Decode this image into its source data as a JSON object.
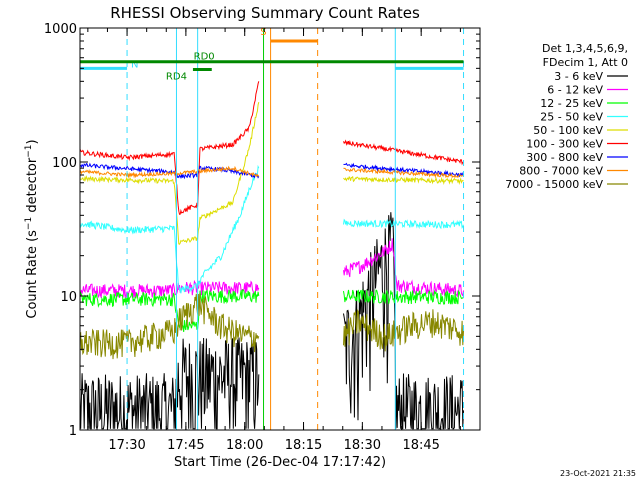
{
  "chart_data": {
    "type": "line",
    "title": "RHESSI Observing Summary Count Rates",
    "xlabel": "Start Time (26-Dec-04 17:17:42)",
    "ylabel_main": "Count Rate (s",
    "ylabel_sup1": "−1",
    "ylabel_mid": " detector",
    "ylabel_sup2": "−1",
    "ylabel_end": ")",
    "yscale": "log",
    "ylim": [
      1,
      1000
    ],
    "xlim_minutes": [
      17.3,
      19.0
    ],
    "x_ticks": [
      {
        "t": 17.5,
        "label": "17:30"
      },
      {
        "t": 17.75,
        "label": "17:45"
      },
      {
        "t": 18.0,
        "label": "18:00"
      },
      {
        "t": 18.25,
        "label": "18:15"
      },
      {
        "t": 18.5,
        "label": "18:30"
      },
      {
        "t": 18.75,
        "label": "18:45"
      }
    ],
    "y_ticks": [
      {
        "v": 1,
        "label": "1"
      },
      {
        "v": 10,
        "label": "10"
      },
      {
        "v": 100,
        "label": "100"
      },
      {
        "v": 1000,
        "label": "1000"
      }
    ],
    "legend_header": [
      "Det 1,3,4,5,6,9,",
      "FDecim 1, Att 0"
    ],
    "legend_position": "right",
    "timestamp": "23-Oct-2021 21:35",
    "flags": [
      {
        "label": "N",
        "color": "#33ddff",
        "segments": [
          [
            17.3,
            17.5
          ],
          [
            18.64,
            18.93
          ]
        ],
        "level": 500
      },
      {
        "label": "RD0",
        "color": "#008800",
        "segments": [
          [
            17.3,
            18.93
          ]
        ],
        "level": 560
      },
      {
        "label": "RD4",
        "color": "#008800",
        "segments": [
          [
            17.78,
            17.86
          ]
        ],
        "level": 490
      },
      {
        "label": "S",
        "color": "#ff8800",
        "segments": [
          [
            18.11,
            18.31
          ]
        ],
        "level": 800
      }
    ],
    "vertical_lines": [
      {
        "t": 17.5,
        "color": "#33ddff",
        "dashed": true
      },
      {
        "t": 17.71,
        "color": "#33ddff",
        "dashed": false
      },
      {
        "t": 17.8,
        "color": "#33ddff",
        "dashed": false
      },
      {
        "t": 18.08,
        "color": "#00cc00",
        "dashed": false
      },
      {
        "t": 18.11,
        "color": "#ff8800",
        "dashed": false
      },
      {
        "t": 18.31,
        "color": "#ff8800",
        "dashed": true
      },
      {
        "t": 18.64,
        "color": "#33ddff",
        "dashed": false
      },
      {
        "t": 18.93,
        "color": "#33ddff",
        "dashed": true
      }
    ],
    "series": [
      {
        "name": "3 - 6 keV",
        "color": "#000000",
        "noise": 0.9,
        "segments": [
          [
            [
              17.3,
              1.4
            ],
            [
              17.7,
              1.4
            ],
            [
              17.72,
              2.6
            ],
            [
              18.06,
              2.6
            ]
          ],
          [
            [
              18.42,
              4.5
            ],
            [
              18.46,
              5.5
            ],
            [
              18.5,
              8
            ],
            [
              18.55,
              13
            ],
            [
              18.6,
              20
            ],
            [
              18.63,
              24
            ],
            [
              18.645,
              1.4
            ],
            [
              18.93,
              1.4
            ]
          ]
        ]
      },
      {
        "name": "6 - 12 keV",
        "color": "#ff00ff",
        "noise": 0.12,
        "segments": [
          [
            [
              17.3,
              11
            ],
            [
              17.7,
              11
            ],
            [
              17.72,
              11.5
            ],
            [
              18.06,
              11.5
            ]
          ],
          [
            [
              18.42,
              15
            ],
            [
              18.5,
              17
            ],
            [
              18.6,
              22
            ],
            [
              18.63,
              25
            ],
            [
              18.645,
              12
            ],
            [
              18.93,
              11
            ]
          ]
        ]
      },
      {
        "name": "12 - 25 keV",
        "color": "#00ff00",
        "noise": 0.12,
        "segments": [
          [
            [
              17.3,
              9.5
            ],
            [
              17.7,
              9.5
            ],
            [
              17.72,
              6
            ],
            [
              17.8,
              6
            ],
            [
              17.81,
              10
            ],
            [
              18.06,
              10
            ]
          ],
          [
            [
              18.42,
              10
            ],
            [
              18.93,
              9.8
            ]
          ]
        ]
      },
      {
        "name": "25 - 50 keV",
        "color": "#33ffff",
        "noise": 0.06,
        "segments": [
          [
            [
              17.3,
              35
            ],
            [
              17.5,
              31
            ],
            [
              17.7,
              32
            ],
            [
              17.72,
              11
            ],
            [
              17.8,
              12
            ],
            [
              17.82,
              14
            ],
            [
              17.9,
              20
            ],
            [
              17.98,
              40
            ],
            [
              18.03,
              70
            ],
            [
              18.06,
              90
            ]
          ],
          [
            [
              18.42,
              35
            ],
            [
              18.93,
              34
            ]
          ]
        ]
      },
      {
        "name": "50 - 100 keV",
        "color": "#dddd00",
        "noise": 0.04,
        "segments": [
          [
            [
              17.3,
              75
            ],
            [
              17.7,
              72
            ],
            [
              17.72,
              25
            ],
            [
              17.8,
              27
            ],
            [
              17.81,
              38
            ],
            [
              17.95,
              50
            ],
            [
              18.02,
              130
            ],
            [
              18.06,
              280
            ]
          ],
          [
            [
              18.42,
              75
            ],
            [
              18.93,
              72
            ]
          ]
        ]
      },
      {
        "name": "100 - 300 keV",
        "color": "#ff0000",
        "noise": 0.04,
        "segments": [
          [
            [
              17.3,
              118
            ],
            [
              17.5,
              108
            ],
            [
              17.7,
              115
            ],
            [
              17.72,
              42
            ],
            [
              17.8,
              48
            ],
            [
              17.81,
              125
            ],
            [
              17.95,
              135
            ],
            [
              18.02,
              180
            ],
            [
              18.06,
              400
            ]
          ],
          [
            [
              18.42,
              140
            ],
            [
              18.6,
              125
            ],
            [
              18.93,
              100
            ]
          ]
        ]
      },
      {
        "name": "300 - 800 keV",
        "color": "#0000ff",
        "noise": 0.035,
        "segments": [
          [
            [
              17.3,
              95
            ],
            [
              17.7,
              84
            ],
            [
              17.72,
              78
            ],
            [
              17.8,
              80
            ],
            [
              17.81,
              90
            ],
            [
              17.9,
              88
            ],
            [
              18.06,
              78
            ]
          ],
          [
            [
              18.42,
              95
            ],
            [
              18.93,
              80
            ]
          ]
        ]
      },
      {
        "name": "800 - 7000 keV",
        "color": "#ff8800",
        "noise": 0.03,
        "segments": [
          [
            [
              17.3,
              85
            ],
            [
              17.5,
              80
            ],
            [
              17.7,
              82
            ],
            [
              17.8,
              85
            ],
            [
              17.95,
              90
            ],
            [
              18.06,
              78
            ]
          ],
          [
            [
              18.42,
              88
            ],
            [
              18.93,
              78
            ]
          ]
        ]
      },
      {
        "name": "7000 - 15000 keV",
        "color": "#888800",
        "noise": 0.25,
        "segments": [
          [
            [
              17.3,
              4.5
            ],
            [
              17.5,
              4.5
            ],
            [
              17.6,
              5
            ],
            [
              17.7,
              5.5
            ],
            [
              17.72,
              6.5
            ],
            [
              17.8,
              9
            ],
            [
              17.9,
              6
            ],
            [
              18.0,
              5
            ],
            [
              18.06,
              5
            ]
          ],
          [
            [
              18.42,
              5
            ],
            [
              18.48,
              6.5
            ],
            [
              18.6,
              5
            ],
            [
              18.7,
              6
            ],
            [
              18.8,
              6.5
            ],
            [
              18.93,
              5.5
            ]
          ]
        ]
      }
    ]
  }
}
